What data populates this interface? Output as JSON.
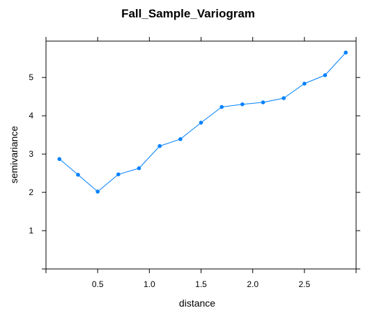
{
  "chart_data": {
    "type": "line",
    "title": "Fall_Sample_Variogram",
    "xlabel": "distance",
    "ylabel": "semivariance",
    "xlim": [
      0,
      3.0
    ],
    "ylim": [
      0,
      5.95
    ],
    "xticks": [
      {
        "value": 0.5,
        "label": "0.5"
      },
      {
        "value": 1.0,
        "label": "1.0"
      },
      {
        "value": 1.5,
        "label": "1.5"
      },
      {
        "value": 2.0,
        "label": "2.0"
      },
      {
        "value": 2.5,
        "label": "2.5"
      }
    ],
    "yticks": [
      {
        "value": 1,
        "label": "1"
      },
      {
        "value": 2,
        "label": "2"
      },
      {
        "value": 3,
        "label": "3"
      },
      {
        "value": 4,
        "label": "4"
      },
      {
        "value": 5,
        "label": "5"
      }
    ],
    "grid": false,
    "series": [
      {
        "color": "#0080ff",
        "x": [
          0.13,
          0.31,
          0.5,
          0.7,
          0.9,
          1.1,
          1.3,
          1.5,
          1.7,
          1.9,
          2.1,
          2.3,
          2.5,
          2.7,
          2.9
        ],
        "y": [
          2.87,
          2.46,
          2.02,
          2.47,
          2.63,
          3.21,
          3.39,
          3.82,
          4.23,
          4.3,
          4.35,
          4.46,
          4.84,
          5.06,
          5.65
        ]
      }
    ]
  }
}
